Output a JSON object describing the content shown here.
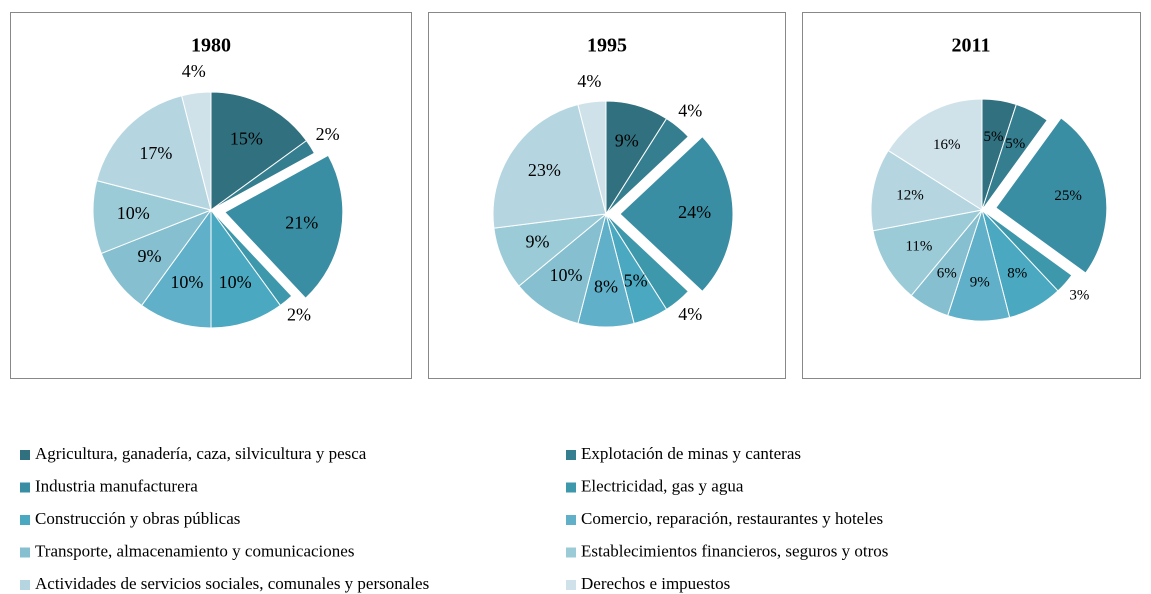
{
  "chart_data": [
    {
      "type": "pie",
      "title": "1980",
      "categories": [
        "Agricultura, ganadería, caza, silvicultura y pesca",
        "Explotación de minas y canteras",
        "Industria manufacturera",
        "Electricidad, gas y agua",
        "Construcción y obras públicas",
        "Comercio, reparación, restaurantes y hoteles",
        "Transporte, almacenamiento y comunicaciones",
        "Establecimientos financieros, seguros y otros",
        "Actividades de servicios sociales, comunales y personales",
        "Derechos e impuestos"
      ],
      "values": [
        15,
        2,
        21,
        2,
        10,
        10,
        9,
        10,
        17,
        4
      ],
      "value_labels": [
        "15%",
        "2%",
        "21%",
        "2%",
        "10%",
        "10%",
        "9%",
        "10%",
        "17%",
        "4%"
      ],
      "colors": [
        "#31707f",
        "#357e8f",
        "#3a8ea3",
        "#3d98ab",
        "#4aa8c0",
        "#5fb0c8",
        "#85bfd0",
        "#9ccbd8",
        "#b5d6e1",
        "#cfe2ea"
      ]
    },
    {
      "type": "pie",
      "title": "1995",
      "categories": [
        "Agricultura, ganadería, caza, silvicultura y pesca",
        "Explotación de minas y canteras",
        "Industria manufacturera",
        "Electricidad, gas y agua",
        "Construcción y obras públicas",
        "Comercio, reparación, restaurantes y hoteles",
        "Transporte, almacenamiento y comunicaciones",
        "Establecimientos financieros, seguros y otros",
        "Actividades de servicios sociales, comunales y personales",
        "Derechos e impuestos"
      ],
      "values": [
        9,
        4,
        24,
        4,
        5,
        8,
        10,
        9,
        23,
        4
      ],
      "value_labels": [
        "9%",
        "4%",
        "24%",
        "4%",
        "5%",
        "8%",
        "10%",
        "9%",
        "23%",
        "4%"
      ],
      "colors": [
        "#31707f",
        "#357e8f",
        "#3a8ea3",
        "#3d98ab",
        "#4aa8c0",
        "#5fb0c8",
        "#85bfd0",
        "#9ccbd8",
        "#b5d6e1",
        "#cfe2ea"
      ]
    },
    {
      "type": "pie",
      "title": "2011",
      "categories": [
        "Agricultura, ganadería, caza, silvicultura y pesca",
        "Explotación de minas y canteras",
        "Industria manufacturera",
        "Electricidad, gas y agua",
        "Construcción y obras públicas",
        "Comercio, reparación, restaurantes y hoteles",
        "Transporte, almacenamiento y comunicaciones",
        "Establecimientos financieros, seguros y otros",
        "Actividades de servicios sociales, comunales y personales",
        "Derechos e impuestos"
      ],
      "values": [
        5,
        5,
        25,
        3,
        8,
        9,
        6,
        11,
        12,
        16
      ],
      "value_labels": [
        "5%",
        "5%",
        "25%",
        "3%",
        "8%",
        "9%",
        "6%",
        "11%",
        "12%",
        "16%"
      ],
      "colors": [
        "#31707f",
        "#357e8f",
        "#3a8ea3",
        "#3d98ab",
        "#4aa8c0",
        "#5fb0c8",
        "#85bfd0",
        "#9ccbd8",
        "#b5d6e1",
        "#cfe2ea"
      ]
    }
  ]
}
